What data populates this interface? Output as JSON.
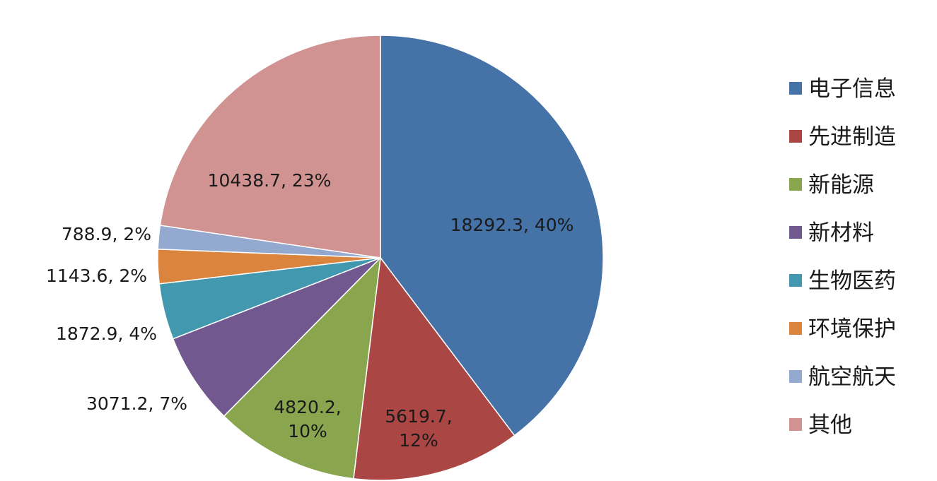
{
  "chart_data": {
    "type": "pie",
    "title": "",
    "legend_position": "right",
    "slices": [
      {
        "name": "电子信息",
        "value": 18292.3,
        "percent": "40%",
        "label_lines": [
          "18292.3, 40%"
        ],
        "color": "#4572a7"
      },
      {
        "name": "先进制造",
        "value": 5619.7,
        "percent": "12%",
        "label_lines": [
          "5619.7,",
          "12%"
        ],
        "color": "#aa4643"
      },
      {
        "name": "新能源",
        "value": 4820.2,
        "percent": "10%",
        "label_lines": [
          "4820.2,",
          "10%"
        ],
        "color": "#89a54e"
      },
      {
        "name": "新材料",
        "value": 3071.2,
        "percent": "7%",
        "label_lines": [
          "3071.2, 7%"
        ],
        "color": "#71588f"
      },
      {
        "name": "生物医药",
        "value": 1872.9,
        "percent": "4%",
        "label_lines": [
          "1872.9, 4%"
        ],
        "color": "#4198af"
      },
      {
        "name": "环境保护",
        "value": 1143.6,
        "percent": "2%",
        "label_lines": [
          "1143.6, 2%"
        ],
        "color": "#db843d"
      },
      {
        "name": "航空航天",
        "value": 788.9,
        "percent": "2%",
        "label_lines": [
          "788.9, 2%"
        ],
        "color": "#93a9cf"
      },
      {
        "name": "其他",
        "value": 10438.7,
        "percent": "23%",
        "label_lines": [
          "10438.7, 23%"
        ],
        "color": "#d19392"
      }
    ]
  }
}
